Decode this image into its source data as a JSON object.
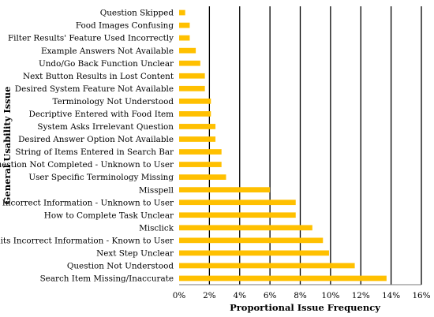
{
  "chart_data": {
    "type": "bar",
    "orientation": "horizontal",
    "title": "",
    "xlabel": "Proportional Issue Frequency",
    "ylabel": "General Usability Issue",
    "xlim": [
      0,
      16
    ],
    "xticks": [
      0,
      2,
      4,
      6,
      8,
      10,
      12,
      14,
      16
    ],
    "xtick_labels": [
      "0%",
      "2%",
      "4%",
      "6%",
      "8%",
      "10%",
      "12%",
      "14%",
      "16%"
    ],
    "grid": "vertical",
    "bar_color": "#FFC000",
    "categories": [
      "Question Skipped",
      "Food Images Confusing",
      "Filter Results' Feature Used Incorrectly",
      "Example Answers Not Available",
      "Undo/Go Back Function Unclear",
      "Next Button Results in Lost Content",
      "Desired System Feature Not Available",
      "Terminology Not Understood",
      "Decriptive Entered with Food Item",
      "System Asks Irrelevant Question",
      "Desired Answer Option Not Available",
      "String of Items Entered in Search Bar",
      "Question Not Completed - Unknown to User",
      "User Specific Terminology Missing",
      "Misspell",
      "Submits Incorrect Information - Unknown to User",
      "How to Complete Task Unclear",
      "Misclick",
      "Submits Incorrect Information - Known to User",
      "Next Step Unclear",
      "Question Not Understood",
      "Search Item Missing/Inaccurate"
    ],
    "values": [
      0.4,
      0.7,
      0.7,
      1.1,
      1.4,
      1.7,
      1.7,
      2.1,
      2.1,
      2.4,
      2.4,
      2.8,
      2.8,
      3.1,
      6.0,
      7.7,
      7.7,
      8.8,
      9.5,
      9.9,
      11.6,
      13.7
    ]
  }
}
